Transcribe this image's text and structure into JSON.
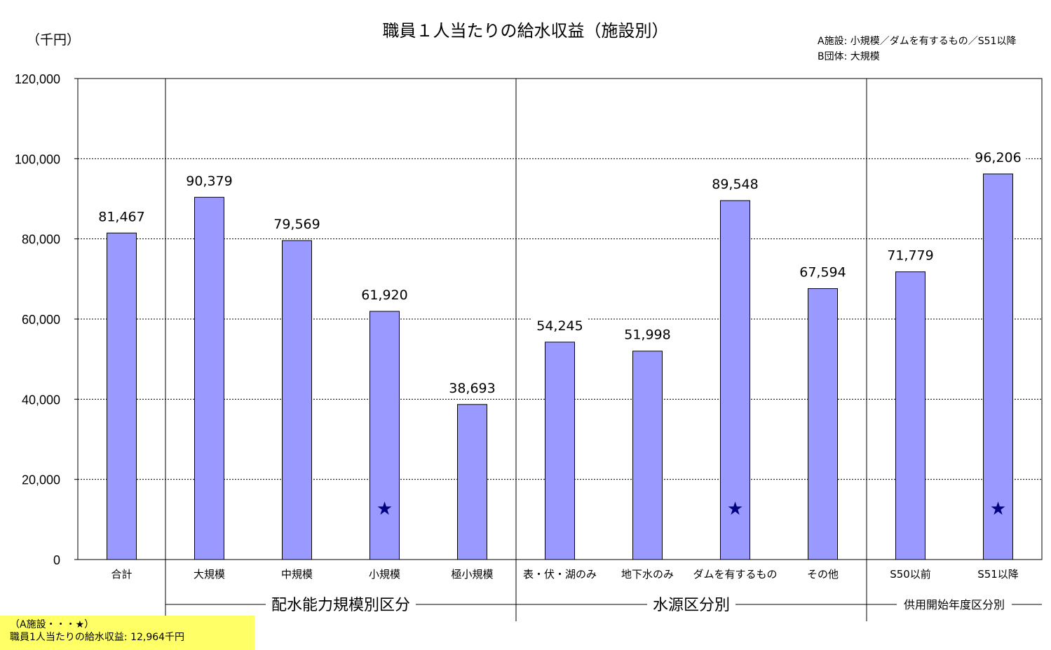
{
  "chart_data": {
    "type": "bar",
    "title": "職員１人当たりの給水収益（施設別）",
    "unit_label": "（千円）",
    "legend_notes": [
      "A施設: 小規模／ダムを有するもの／S51以降",
      "B団体: 大規模"
    ],
    "categories": [
      "合計",
      "大規模",
      "中規模",
      "小規模",
      "極小規模",
      "表・伏・湖のみ",
      "地下水のみ",
      "ダムを有するもの",
      "その他",
      "S50以前",
      "S51以降"
    ],
    "values": [
      81467,
      90379,
      79569,
      61920,
      38693,
      54245,
      51998,
      89548,
      67594,
      71779,
      96206
    ],
    "value_labels": [
      "81,467",
      "90,379",
      "79,569",
      "61,920",
      "38,693",
      "54,245",
      "51,998",
      "89,548",
      "67,594",
      "71,779",
      "96,206"
    ],
    "ylim": [
      0,
      120000
    ],
    "yticks": [
      0,
      20000,
      40000,
      60000,
      80000,
      100000,
      120000
    ],
    "ytick_labels": [
      "0",
      "20,000",
      "40,000",
      "60,000",
      "80,000",
      "100,000",
      "120,000"
    ],
    "star_marker_categories": [
      "小規模",
      "ダムを有するもの",
      "S51以降"
    ],
    "star_value": 12964,
    "groups": [
      {
        "label": "配水能力規模別区分",
        "from": 1,
        "to": 4
      },
      {
        "label": "水源区分別",
        "from": 5,
        "to": 8
      },
      {
        "label": "供用開始年度区分別",
        "from": 9,
        "to": 10
      }
    ],
    "grid": true,
    "bar_color": "#9999ff",
    "star_color": "#000080"
  },
  "footnote": {
    "line1": "（A施設・・・★）",
    "line2": "職員1人当たりの給水収益: 12,964千円"
  }
}
